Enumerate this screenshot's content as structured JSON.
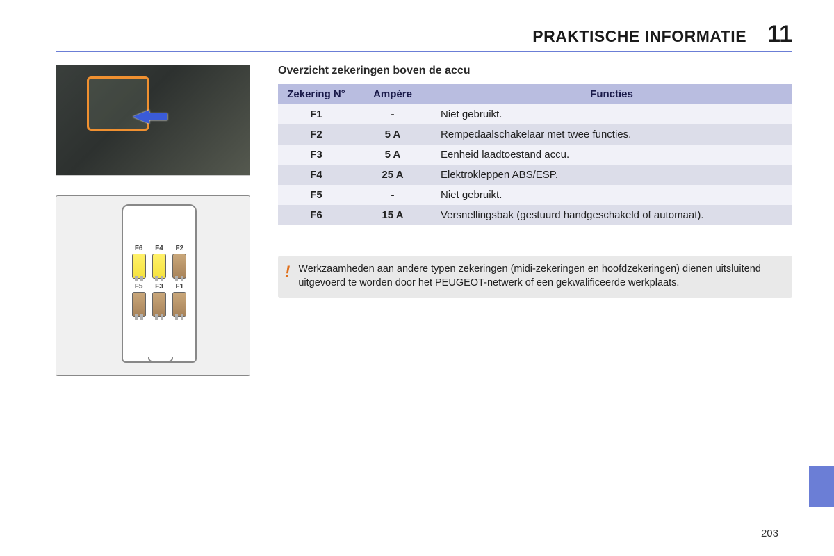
{
  "header": {
    "title": "PRAKTISCHE INFORMATIE",
    "chapter_number": "11"
  },
  "section_title": "Overzicht zekeringen boven de accu",
  "page_number": "203",
  "colors": {
    "accent": "#6b7ed6",
    "table_header_bg": "#b9bde0",
    "row_light": "#f1f1f8",
    "row_dark": "#dcdde9",
    "alert_bg": "#e9e9e9",
    "alert_icon": "#e0701c",
    "highlight_border": "#f09030"
  },
  "table": {
    "columns": [
      "Zekering N°",
      "Ampère",
      "Functies"
    ],
    "rows": [
      {
        "id": "F1",
        "amp": "-",
        "func": "Niet gebruikt."
      },
      {
        "id": "F2",
        "amp": "5 A",
        "func": "Rempedaalschakelaar met twee functies."
      },
      {
        "id": "F3",
        "amp": "5 A",
        "func": "Eenheid laadtoestand accu."
      },
      {
        "id": "F4",
        "amp": "25 A",
        "func": "Elektrokleppen ABS/ESP."
      },
      {
        "id": "F5",
        "amp": "-",
        "func": "Niet gebruikt."
      },
      {
        "id": "F6",
        "amp": "15 A",
        "func": "Versnellingsbak (gestuurd handgeschakeld of automaat)."
      }
    ]
  },
  "diagram": {
    "slots": [
      {
        "label": "F6",
        "color": "yellow"
      },
      {
        "label": "F4",
        "color": "yellow"
      },
      {
        "label": "F2",
        "color": "brown"
      },
      {
        "label": "F5",
        "color": "brown"
      },
      {
        "label": "F3",
        "color": "brown"
      },
      {
        "label": "F1",
        "color": "brown"
      }
    ]
  },
  "alert": {
    "icon": "!",
    "text": "Werkzaamheden aan andere typen zekeringen (midi-zekeringen en hoofdzekeringen) dienen uitsluitend uitgevoerd te worden door het PEUGEOT-netwerk of een gekwalificeerde werkplaats."
  }
}
